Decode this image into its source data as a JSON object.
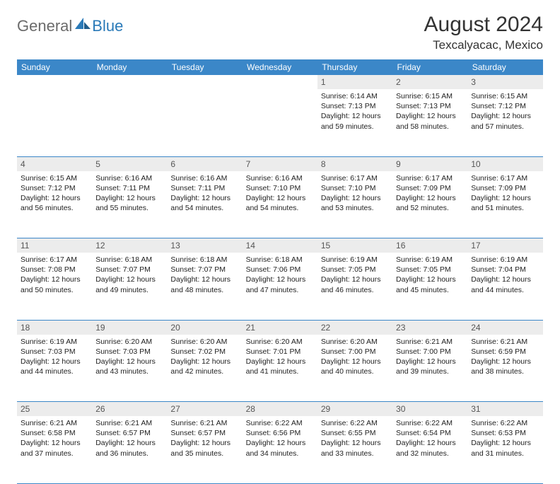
{
  "logo": {
    "general": "General",
    "blue": "Blue"
  },
  "title": "August 2024",
  "location": "Texcalyacac, Mexico",
  "header_bg": "#3b87c8",
  "header_text": "#ffffff",
  "daynum_bg": "#ececec",
  "daynum_text": "#555555",
  "border_color": "#3b87c8",
  "days_of_week": [
    "Sunday",
    "Monday",
    "Tuesday",
    "Wednesday",
    "Thursday",
    "Friday",
    "Saturday"
  ],
  "weeks": [
    [
      null,
      null,
      null,
      null,
      {
        "n": "1",
        "sr": "Sunrise: 6:14 AM",
        "ss": "Sunset: 7:13 PM",
        "d1": "Daylight: 12 hours",
        "d2": "and 59 minutes."
      },
      {
        "n": "2",
        "sr": "Sunrise: 6:15 AM",
        "ss": "Sunset: 7:13 PM",
        "d1": "Daylight: 12 hours",
        "d2": "and 58 minutes."
      },
      {
        "n": "3",
        "sr": "Sunrise: 6:15 AM",
        "ss": "Sunset: 7:12 PM",
        "d1": "Daylight: 12 hours",
        "d2": "and 57 minutes."
      }
    ],
    [
      {
        "n": "4",
        "sr": "Sunrise: 6:15 AM",
        "ss": "Sunset: 7:12 PM",
        "d1": "Daylight: 12 hours",
        "d2": "and 56 minutes."
      },
      {
        "n": "5",
        "sr": "Sunrise: 6:16 AM",
        "ss": "Sunset: 7:11 PM",
        "d1": "Daylight: 12 hours",
        "d2": "and 55 minutes."
      },
      {
        "n": "6",
        "sr": "Sunrise: 6:16 AM",
        "ss": "Sunset: 7:11 PM",
        "d1": "Daylight: 12 hours",
        "d2": "and 54 minutes."
      },
      {
        "n": "7",
        "sr": "Sunrise: 6:16 AM",
        "ss": "Sunset: 7:10 PM",
        "d1": "Daylight: 12 hours",
        "d2": "and 54 minutes."
      },
      {
        "n": "8",
        "sr": "Sunrise: 6:17 AM",
        "ss": "Sunset: 7:10 PM",
        "d1": "Daylight: 12 hours",
        "d2": "and 53 minutes."
      },
      {
        "n": "9",
        "sr": "Sunrise: 6:17 AM",
        "ss": "Sunset: 7:09 PM",
        "d1": "Daylight: 12 hours",
        "d2": "and 52 minutes."
      },
      {
        "n": "10",
        "sr": "Sunrise: 6:17 AM",
        "ss": "Sunset: 7:09 PM",
        "d1": "Daylight: 12 hours",
        "d2": "and 51 minutes."
      }
    ],
    [
      {
        "n": "11",
        "sr": "Sunrise: 6:17 AM",
        "ss": "Sunset: 7:08 PM",
        "d1": "Daylight: 12 hours",
        "d2": "and 50 minutes."
      },
      {
        "n": "12",
        "sr": "Sunrise: 6:18 AM",
        "ss": "Sunset: 7:07 PM",
        "d1": "Daylight: 12 hours",
        "d2": "and 49 minutes."
      },
      {
        "n": "13",
        "sr": "Sunrise: 6:18 AM",
        "ss": "Sunset: 7:07 PM",
        "d1": "Daylight: 12 hours",
        "d2": "and 48 minutes."
      },
      {
        "n": "14",
        "sr": "Sunrise: 6:18 AM",
        "ss": "Sunset: 7:06 PM",
        "d1": "Daylight: 12 hours",
        "d2": "and 47 minutes."
      },
      {
        "n": "15",
        "sr": "Sunrise: 6:19 AM",
        "ss": "Sunset: 7:05 PM",
        "d1": "Daylight: 12 hours",
        "d2": "and 46 minutes."
      },
      {
        "n": "16",
        "sr": "Sunrise: 6:19 AM",
        "ss": "Sunset: 7:05 PM",
        "d1": "Daylight: 12 hours",
        "d2": "and 45 minutes."
      },
      {
        "n": "17",
        "sr": "Sunrise: 6:19 AM",
        "ss": "Sunset: 7:04 PM",
        "d1": "Daylight: 12 hours",
        "d2": "and 44 minutes."
      }
    ],
    [
      {
        "n": "18",
        "sr": "Sunrise: 6:19 AM",
        "ss": "Sunset: 7:03 PM",
        "d1": "Daylight: 12 hours",
        "d2": "and 44 minutes."
      },
      {
        "n": "19",
        "sr": "Sunrise: 6:20 AM",
        "ss": "Sunset: 7:03 PM",
        "d1": "Daylight: 12 hours",
        "d2": "and 43 minutes."
      },
      {
        "n": "20",
        "sr": "Sunrise: 6:20 AM",
        "ss": "Sunset: 7:02 PM",
        "d1": "Daylight: 12 hours",
        "d2": "and 42 minutes."
      },
      {
        "n": "21",
        "sr": "Sunrise: 6:20 AM",
        "ss": "Sunset: 7:01 PM",
        "d1": "Daylight: 12 hours",
        "d2": "and 41 minutes."
      },
      {
        "n": "22",
        "sr": "Sunrise: 6:20 AM",
        "ss": "Sunset: 7:00 PM",
        "d1": "Daylight: 12 hours",
        "d2": "and 40 minutes."
      },
      {
        "n": "23",
        "sr": "Sunrise: 6:21 AM",
        "ss": "Sunset: 7:00 PM",
        "d1": "Daylight: 12 hours",
        "d2": "and 39 minutes."
      },
      {
        "n": "24",
        "sr": "Sunrise: 6:21 AM",
        "ss": "Sunset: 6:59 PM",
        "d1": "Daylight: 12 hours",
        "d2": "and 38 minutes."
      }
    ],
    [
      {
        "n": "25",
        "sr": "Sunrise: 6:21 AM",
        "ss": "Sunset: 6:58 PM",
        "d1": "Daylight: 12 hours",
        "d2": "and 37 minutes."
      },
      {
        "n": "26",
        "sr": "Sunrise: 6:21 AM",
        "ss": "Sunset: 6:57 PM",
        "d1": "Daylight: 12 hours",
        "d2": "and 36 minutes."
      },
      {
        "n": "27",
        "sr": "Sunrise: 6:21 AM",
        "ss": "Sunset: 6:57 PM",
        "d1": "Daylight: 12 hours",
        "d2": "and 35 minutes."
      },
      {
        "n": "28",
        "sr": "Sunrise: 6:22 AM",
        "ss": "Sunset: 6:56 PM",
        "d1": "Daylight: 12 hours",
        "d2": "and 34 minutes."
      },
      {
        "n": "29",
        "sr": "Sunrise: 6:22 AM",
        "ss": "Sunset: 6:55 PM",
        "d1": "Daylight: 12 hours",
        "d2": "and 33 minutes."
      },
      {
        "n": "30",
        "sr": "Sunrise: 6:22 AM",
        "ss": "Sunset: 6:54 PM",
        "d1": "Daylight: 12 hours",
        "d2": "and 32 minutes."
      },
      {
        "n": "31",
        "sr": "Sunrise: 6:22 AM",
        "ss": "Sunset: 6:53 PM",
        "d1": "Daylight: 12 hours",
        "d2": "and 31 minutes."
      }
    ]
  ]
}
